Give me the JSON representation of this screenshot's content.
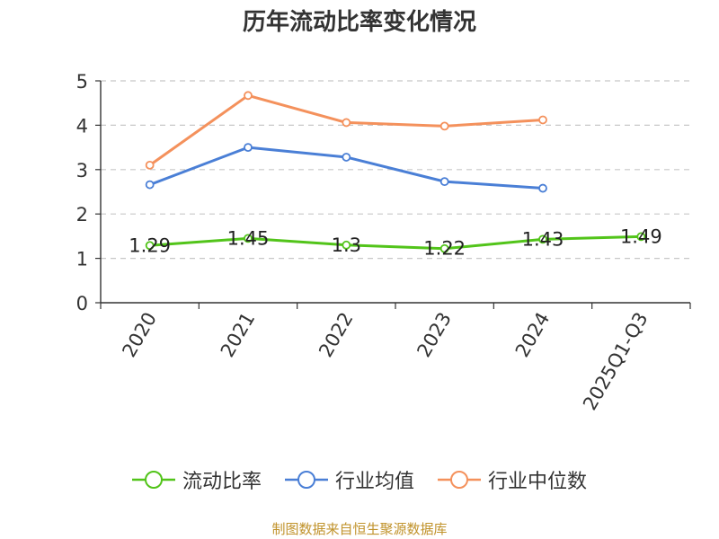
{
  "chart_data": {
    "type": "line",
    "title": "历年流动比率变化情况",
    "categories": [
      "2020",
      "2021",
      "2022",
      "2023",
      "2024",
      "2025Q1-Q3"
    ],
    "ylim": [
      0,
      5
    ],
    "yticks": [
      0,
      1,
      2,
      3,
      4,
      5
    ],
    "grid": true,
    "legend_position": "bottom",
    "series": [
      {
        "name": "流动比率",
        "color": "#52c41a",
        "values": [
          1.29,
          1.45,
          1.3,
          1.22,
          1.43,
          1.49
        ],
        "labels": [
          "1.29",
          "1.45",
          "1.3",
          "1.22",
          "1.43",
          "1.49"
        ]
      },
      {
        "name": "行业均值",
        "color": "#4a7fd6",
        "values": [
          2.66,
          3.5,
          3.28,
          2.73,
          2.58,
          null
        ]
      },
      {
        "name": "行业中位数",
        "color": "#f4915c",
        "values": [
          3.1,
          4.67,
          4.06,
          3.98,
          4.12,
          null
        ]
      }
    ],
    "source": "制图数据来自恒生聚源数据库"
  }
}
